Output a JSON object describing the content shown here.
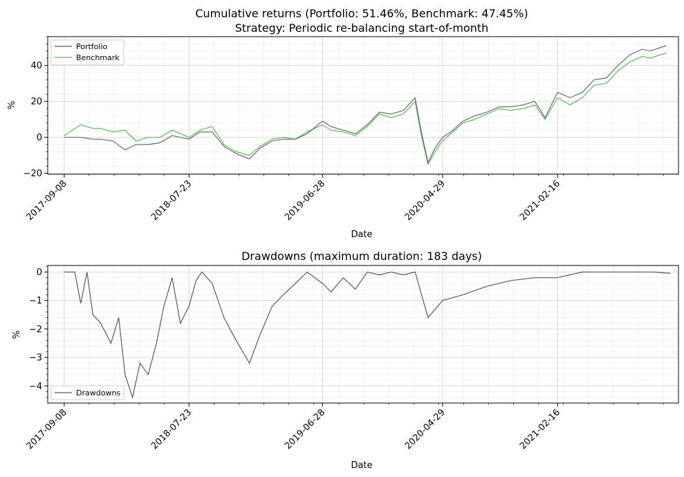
{
  "colors": {
    "portfolio": "#5a5a5a",
    "benchmark": "#5cb85c",
    "drawdowns": "#5a5a5a",
    "grid": "#d9d9d9"
  },
  "chart_data": [
    {
      "type": "line",
      "title": "Cumulative returns (Portfolio: 51.46%, Benchmark: 47.45%)",
      "subtitle": "Strategy: Periodic re-balancing start-of-month",
      "xlabel": "Date",
      "ylabel": "%",
      "xlim": [
        "2017-07-28",
        "2021-12-21"
      ],
      "ylim": [
        -20.5,
        56
      ],
      "x_ticks": [
        "2017-09-08",
        "2018-07-23",
        "2019-06-28",
        "2020-04-29",
        "2021-02-16"
      ],
      "y_ticks": [
        -20,
        0,
        20,
        40
      ],
      "legend": "top-left",
      "grid": true,
      "x": [
        "2017-09-08",
        "2017-10-20",
        "2017-11-20",
        "2017-12-10",
        "2018-01-10",
        "2018-02-10",
        "2018-03-10",
        "2018-04-10",
        "2018-05-10",
        "2018-06-10",
        "2018-07-23",
        "2018-08-20",
        "2018-09-20",
        "2018-10-20",
        "2018-11-20",
        "2018-12-24",
        "2019-01-20",
        "2019-02-20",
        "2019-03-20",
        "2019-04-20",
        "2019-05-20",
        "2019-06-28",
        "2019-07-20",
        "2019-08-20",
        "2019-09-20",
        "2019-10-20",
        "2019-11-20",
        "2019-12-20",
        "2020-01-20",
        "2020-02-19",
        "2020-03-05",
        "2020-03-23",
        "2020-04-10",
        "2020-04-29",
        "2020-05-20",
        "2020-06-20",
        "2020-07-20",
        "2020-08-20",
        "2020-09-20",
        "2020-10-20",
        "2020-11-20",
        "2020-12-20",
        "2021-01-15",
        "2021-02-16",
        "2021-03-20",
        "2021-04-20",
        "2021-05-20",
        "2021-06-20",
        "2021-07-20",
        "2021-08-20",
        "2021-09-20",
        "2021-10-10",
        "2021-11-20"
      ],
      "series": [
        {
          "name": "Portfolio",
          "values": [
            0,
            0,
            -1,
            -1,
            -2,
            -7,
            -4,
            -4,
            -3,
            1,
            -1,
            3,
            3,
            -5,
            -9,
            -12,
            -6,
            -2,
            -1,
            -1,
            2,
            9,
            6,
            4,
            2,
            7,
            14,
            13,
            15,
            22,
            4,
            -14,
            -6,
            0,
            3,
            9,
            12,
            14,
            17,
            17,
            18,
            20,
            11,
            25,
            22,
            25,
            32,
            33,
            40,
            46,
            49,
            48,
            51
          ]
        },
        {
          "name": "Benchmark",
          "values": [
            1,
            7,
            5,
            5,
            3,
            4,
            -2,
            0,
            0,
            4,
            0,
            4,
            6,
            -4,
            -8,
            -10,
            -5,
            -1,
            0,
            -1,
            3,
            7,
            4,
            3,
            1,
            6,
            13,
            11,
            13,
            20,
            2,
            -15,
            -8,
            -2,
            2,
            8,
            10,
            13,
            16,
            15,
            16,
            18,
            10,
            22,
            18,
            22,
            29,
            30,
            37,
            42,
            45,
            44,
            47
          ]
        }
      ]
    },
    {
      "type": "line",
      "title": "Drawdowns (maximum duration: 183 days)",
      "xlabel": "Date",
      "ylabel": "%",
      "xlim": [
        "2017-07-28",
        "2021-12-21"
      ],
      "ylim": [
        -4.6,
        0.23
      ],
      "x_ticks": [
        "2017-09-08",
        "2018-07-23",
        "2019-06-28",
        "2020-04-29",
        "2021-02-16"
      ],
      "y_ticks": [
        -4,
        -3,
        -2,
        -1,
        0
      ],
      "legend": "bottom-left",
      "grid": true,
      "x": [
        "2017-09-08",
        "2017-10-05",
        "2017-10-20",
        "2017-11-05",
        "2017-11-20",
        "2017-12-10",
        "2018-01-05",
        "2018-01-25",
        "2018-02-10",
        "2018-03-01",
        "2018-03-20",
        "2018-04-10",
        "2018-05-01",
        "2018-05-20",
        "2018-06-10",
        "2018-07-01",
        "2018-07-23",
        "2018-08-10",
        "2018-08-25",
        "2018-09-20",
        "2018-10-20",
        "2018-11-20",
        "2018-12-24",
        "2019-01-20",
        "2019-02-20",
        "2019-03-20",
        "2019-04-20",
        "2019-05-20",
        "2019-06-28",
        "2019-07-20",
        "2019-08-20",
        "2019-09-20",
        "2019-10-20",
        "2019-11-20",
        "2019-12-20",
        "2020-01-20",
        "2020-02-19",
        "2020-03-23",
        "2020-04-29",
        "2020-06-20",
        "2020-08-20",
        "2020-10-20",
        "2020-12-20",
        "2021-02-16",
        "2021-04-20",
        "2021-06-20",
        "2021-08-20",
        "2021-10-20",
        "2021-12-01"
      ],
      "series": [
        {
          "name": "Drawdowns",
          "values": [
            0,
            0,
            -1.1,
            0,
            -1.5,
            -1.8,
            -2.5,
            -1.6,
            -3.6,
            -4.4,
            -3.2,
            -3.6,
            -2.5,
            -1.2,
            -0.2,
            -1.8,
            -1.2,
            -0.3,
            0,
            -0.4,
            -1.6,
            -2.4,
            -3.2,
            -2.2,
            -1.2,
            -0.8,
            -0.4,
            0,
            -0.4,
            -0.7,
            -0.2,
            -0.6,
            0,
            -0.1,
            0,
            -0.1,
            0,
            -1.6,
            -1.0,
            -0.8,
            -0.5,
            -0.3,
            -0.2,
            -0.2,
            0,
            0,
            0,
            0,
            -0.05
          ]
        }
      ]
    }
  ]
}
